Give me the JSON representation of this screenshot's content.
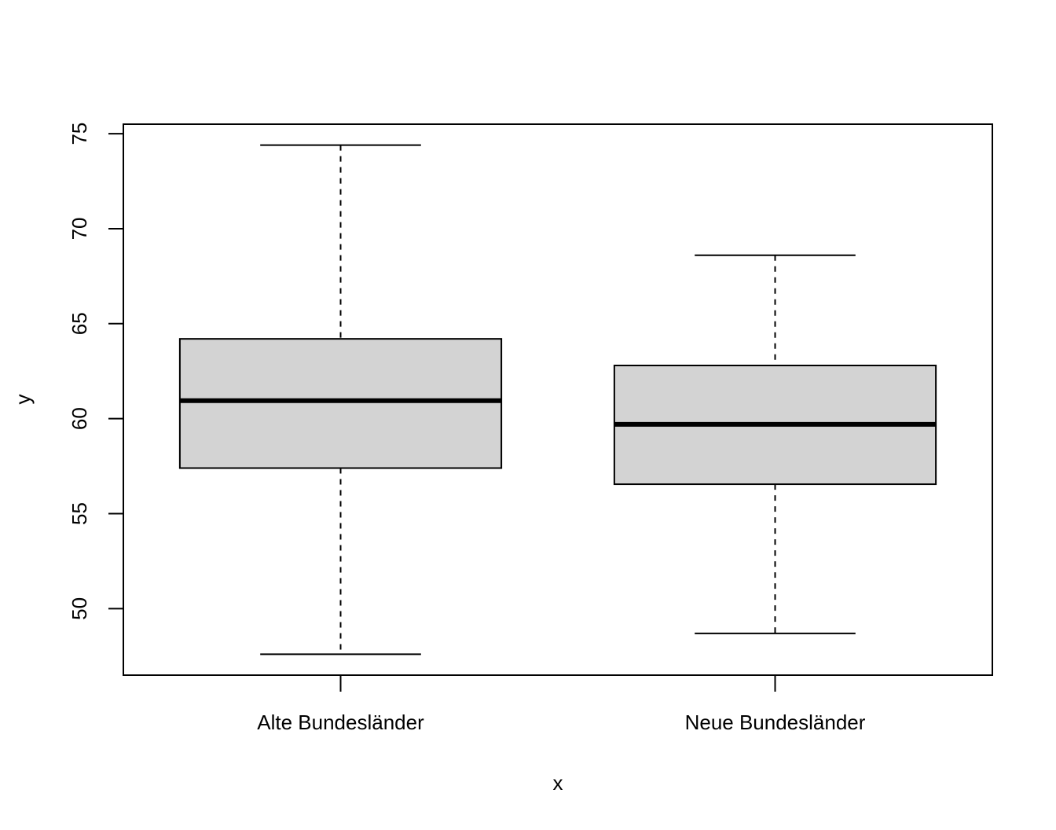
{
  "chart_data": {
    "type": "boxplot",
    "title": "",
    "xlabel": "x",
    "ylabel": "y",
    "ylim": [
      46.5,
      75.5
    ],
    "y_ticks": [
      50,
      55,
      60,
      65,
      70,
      75
    ],
    "y_tick_labels": [
      "50",
      "55",
      "60",
      "65",
      "70",
      "75"
    ],
    "categories": [
      "Alte Bundesländer",
      "Neue Bundesländer"
    ],
    "boxes": [
      {
        "category": "Alte Bundesländer",
        "whisker_low": 47.6,
        "q1": 57.4,
        "median": 60.95,
        "q3": 64.2,
        "whisker_high": 74.4
      },
      {
        "category": "Neue Bundesländer",
        "whisker_low": 48.7,
        "q1": 56.55,
        "median": 59.7,
        "q3": 62.8,
        "whisker_high": 68.6
      }
    ],
    "box_fill": "#d3d3d3",
    "grid": false,
    "legend": "none"
  }
}
